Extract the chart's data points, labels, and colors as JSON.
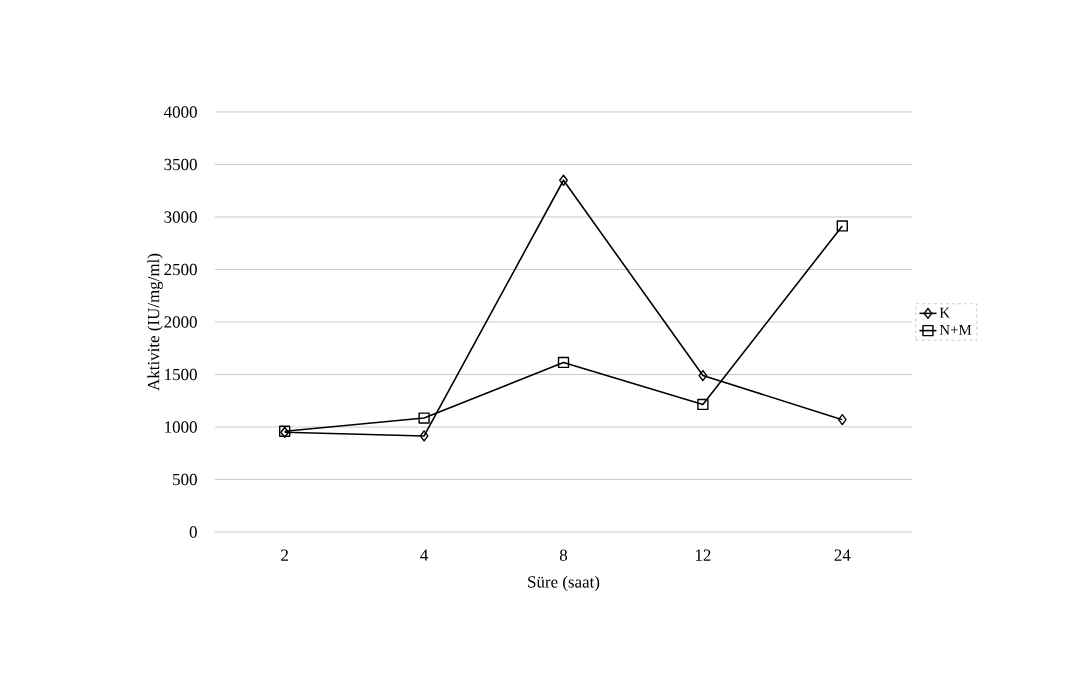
{
  "chart_data": {
    "type": "line",
    "xlabel": "Süre (saat)",
    "ylabel": "Aktivite (IU/mg/ml)",
    "categories": [
      "2",
      "4",
      "8",
      "12",
      "24"
    ],
    "series": [
      {
        "name": "K",
        "color": "#000000",
        "marker": "diamond",
        "values": [
          950,
          915,
          3350,
          1490,
          1070
        ]
      },
      {
        "name": "N+M",
        "color": "#000000",
        "marker": "square",
        "values": [
          960,
          1085,
          1615,
          1215,
          2915
        ]
      }
    ],
    "ylim": [
      0,
      4000
    ],
    "yticks": [
      0,
      500,
      1000,
      1500,
      2000,
      2500,
      3000,
      3500,
      4000
    ],
    "grid": "y",
    "legend": "right",
    "line_style": "solid"
  }
}
